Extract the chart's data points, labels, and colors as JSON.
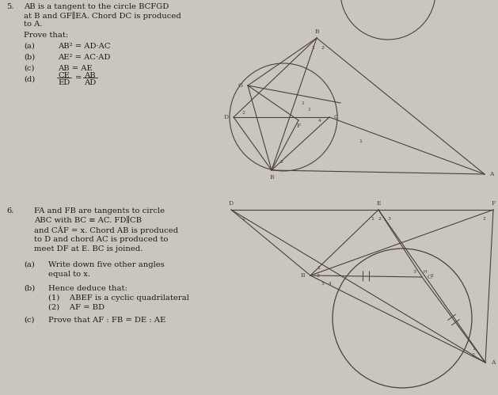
{
  "bg_color": "#cac6be",
  "fig_width": 6.29,
  "fig_height": 4.99,
  "q5_number": "5.",
  "q5_intro_line1": "AB is a tangent to the circle BCFGD",
  "q5_intro_line2": "at B and GF∥EA. Chord DC is produced",
  "q5_intro_line3": "to A.",
  "q5_prove": "Prove that:",
  "q5_a_label": "(a)",
  "q5_a_text": "AB² = AD·AC",
  "q5_b_label": "(b)",
  "q5_b_text": "AE² = AC·AD",
  "q5_c_label": "(c)",
  "q5_c_text": "AB = AE",
  "q5_d_label": "(d)",
  "q5_d_CE": "CE",
  "q5_d_ED": "ED",
  "q5_d_eq": "=",
  "q5_d_AB": "AB",
  "q5_d_AD": "AD",
  "q6_number": "6.",
  "q6_line1": "FA and FB are tangents to circle",
  "q6_line2": "ABC with BC ≡ AC. FD∥CB",
  "q6_line3": "and CÂF = x. Chord AB is produced",
  "q6_line4": "to D and chord AC is produced to",
  "q6_line5": "meet DF at E. BC is joined.",
  "q6_a_label": "(a)",
  "q6_a_line1": "Write down five other angles",
  "q6_a_line2": "equal to x.",
  "q6_b_label": "(b)",
  "q6_b_text": "Hence deduce that:",
  "q6_b1": "(1)    ABEF is a cyclic quadrilateral",
  "q6_b2": "(2)    AF = BD",
  "q6_c_label": "(c)",
  "q6_c_text": "Prove that AF : FB = DE : AE",
  "lc": "#4a4040",
  "lw": 0.8,
  "label_fs": 5.5,
  "num_fs": 4.5,
  "text_color": "#1a1a1a",
  "text_fs": 7.2
}
